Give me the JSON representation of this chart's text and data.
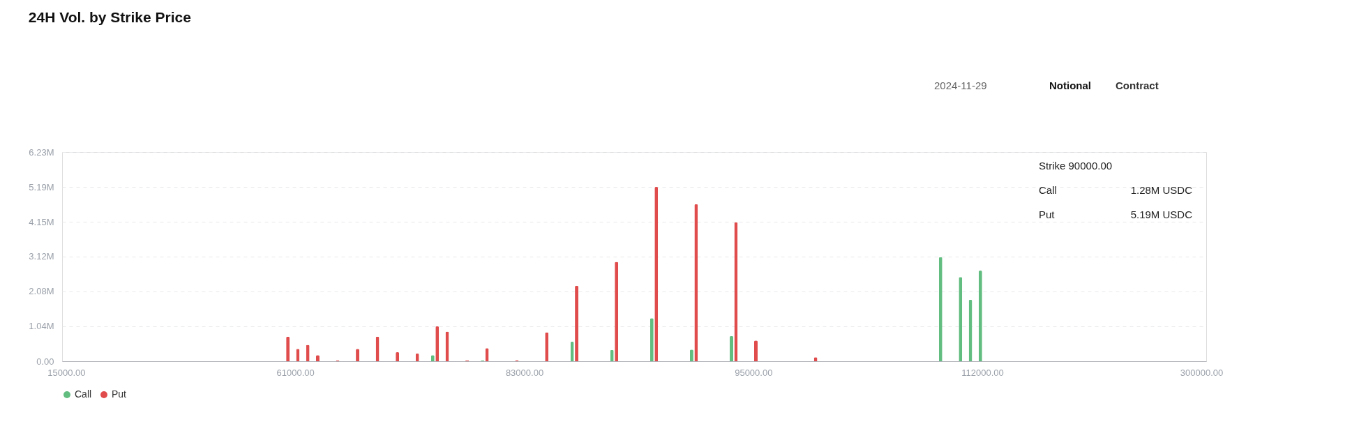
{
  "chart_data": {
    "type": "bar",
    "title": "24H Vol. by Strike Price",
    "categories": [
      "15000.00",
      null,
      null,
      null,
      null,
      null,
      null,
      null,
      null,
      null,
      null,
      null,
      null,
      null,
      null,
      null,
      null,
      null,
      null,
      null,
      null,
      null,
      null,
      "61000.00",
      null,
      null,
      null,
      null,
      null,
      null,
      null,
      null,
      null,
      null,
      null,
      null,
      null,
      null,
      null,
      null,
      null,
      null,
      null,
      null,
      null,
      null,
      "83000.00",
      null,
      null,
      null,
      null,
      null,
      null,
      null,
      null,
      null,
      null,
      null,
      null,
      null,
      null,
      null,
      null,
      null,
      null,
      null,
      null,
      null,
      null,
      "95000.00",
      null,
      null,
      null,
      null,
      null,
      null,
      null,
      null,
      null,
      null,
      null,
      null,
      null,
      null,
      null,
      null,
      null,
      null,
      null,
      null,
      null,
      null,
      "112000.00",
      null,
      null,
      null,
      null,
      null,
      null,
      null,
      null,
      null,
      null,
      null,
      null,
      null,
      null,
      null,
      null,
      null,
      null,
      null,
      null,
      null,
      "300000.00"
    ],
    "series": [
      {
        "name": "Call",
        "color": "#62bd80",
        "values": [
          null,
          null,
          null,
          null,
          null,
          null,
          null,
          null,
          null,
          null,
          null,
          null,
          null,
          null,
          null,
          null,
          null,
          null,
          null,
          null,
          null,
          null,
          null,
          null,
          null,
          null,
          null,
          null,
          null,
          null,
          null,
          null,
          null,
          null,
          null,
          null,
          null,
          0.18,
          null,
          null,
          null,
          null,
          0.02,
          null,
          null,
          null,
          null,
          null,
          null,
          null,
          null,
          0.58,
          null,
          null,
          null,
          0.34,
          null,
          null,
          null,
          1.28,
          null,
          null,
          null,
          0.35,
          null,
          null,
          null,
          0.75,
          null,
          null,
          null,
          null,
          null,
          null,
          null,
          null,
          null,
          null,
          null,
          null,
          null,
          null,
          null,
          null,
          null,
          null,
          null,
          null,
          3.1,
          null,
          2.51,
          1.83,
          2.7,
          null,
          null,
          null,
          null,
          null,
          null,
          null,
          null,
          null,
          null,
          null,
          null,
          null,
          null,
          null,
          null,
          null,
          null,
          null,
          null,
          null,
          null
        ]
      },
      {
        "name": "Put",
        "color": "#e04b4b",
        "values": [
          null,
          null,
          null,
          null,
          null,
          null,
          null,
          null,
          null,
          null,
          null,
          null,
          null,
          null,
          null,
          null,
          null,
          null,
          null,
          null,
          null,
          null,
          0.73,
          0.37,
          0.49,
          0.18,
          null,
          0.02,
          null,
          0.37,
          null,
          0.73,
          null,
          0.27,
          null,
          0.23,
          null,
          1.04,
          0.88,
          null,
          0.02,
          null,
          0.39,
          null,
          null,
          0.03,
          null,
          null,
          0.86,
          null,
          null,
          2.25,
          null,
          null,
          null,
          2.96,
          null,
          null,
          null,
          5.19,
          null,
          null,
          null,
          4.68,
          null,
          null,
          null,
          4.14,
          null,
          0.62,
          null,
          null,
          null,
          null,
          null,
          0.12,
          null,
          null,
          null,
          null,
          null,
          null,
          null,
          null,
          null,
          null,
          null,
          null,
          null,
          null,
          null,
          null,
          null,
          null,
          null,
          null,
          null,
          null,
          null,
          null,
          null,
          null,
          null,
          null,
          null,
          null,
          null,
          null,
          null,
          null,
          null,
          null,
          null,
          null,
          null
        ]
      }
    ],
    "ylim": [
      0,
      6.23
    ],
    "yticks": [
      {
        "value": 0,
        "label": "0.00"
      },
      {
        "value": 1.04,
        "label": "1.04M"
      },
      {
        "value": 2.08,
        "label": "2.08M"
      },
      {
        "value": 3.12,
        "label": "3.12M"
      },
      {
        "value": 4.15,
        "label": "4.15M"
      },
      {
        "value": 5.19,
        "label": "5.19M"
      },
      {
        "value": 6.23,
        "label": "6.23M"
      }
    ],
    "grid": "y",
    "legend": "bottom",
    "annotations": [
      "2024-11-29",
      "Notional",
      "Contract",
      "Strike 90000.00",
      "Call",
      "1.28M USDC",
      "Put",
      "5.19M USDC"
    ]
  }
}
